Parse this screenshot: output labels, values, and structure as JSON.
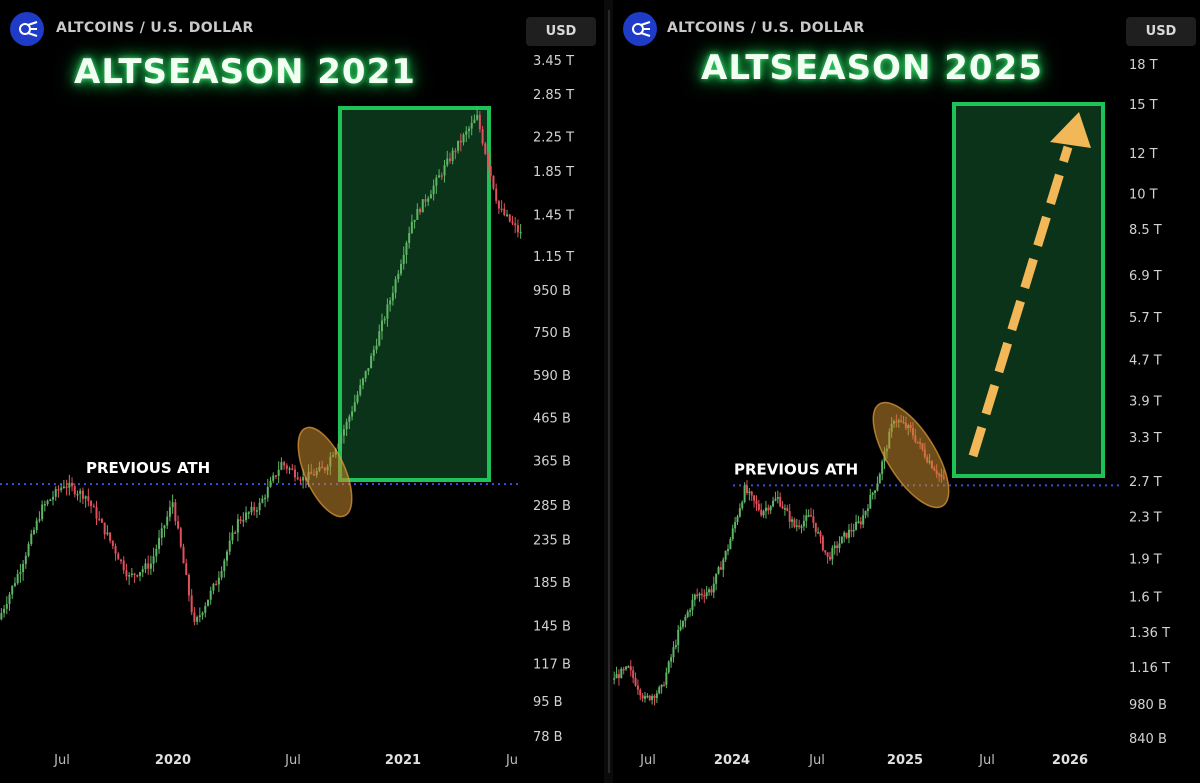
{
  "panels": [
    {
      "symbol": "ALTCOINS / U.S. DOLLAR",
      "currency_button": "USD",
      "title": "ALTSEASON 2021",
      "annotation": "PREVIOUS ATH",
      "colors": {
        "up": "#5fb566",
        "down": "#e0505d",
        "box": "#1f9e4e",
        "ath_line": "#3a4fd8",
        "highlight": "#c98a2e"
      }
    },
    {
      "symbol": "ALTCOINS / U.S. DOLLAR",
      "currency_button": "USD",
      "title": "ALTSEASON 2025",
      "annotation": "PREVIOUS ATH",
      "colors": {
        "up": "#5fb566",
        "down": "#e0505d",
        "box": "#1f9e4e",
        "ath_line": "#3a4fd8",
        "highlight": "#c98a2e",
        "arrow": "#f2b756"
      }
    }
  ],
  "chart_data": [
    {
      "type": "candlestick",
      "title": "ALTSEASON 2021",
      "y_scale": "log",
      "y_ticks": [
        "3.45 T",
        "2.85 T",
        "2.25 T",
        "1.85 T",
        "1.45 T",
        "1.15 T",
        "950 B",
        "750 B",
        "590 B",
        "465 B",
        "365 B",
        "285 B",
        "235 B",
        "185 B",
        "145 B",
        "117 B",
        "95 B",
        "78 B"
      ],
      "x_ticks": [
        {
          "label": "Jul",
          "bold": false
        },
        {
          "label": "2020",
          "bold": true
        },
        {
          "label": "Jul",
          "bold": false
        },
        {
          "label": "2021",
          "bold": true
        },
        {
          "label": "Ju",
          "bold": false
        }
      ],
      "previous_ath": 320,
      "series_close": [
        {
          "date": "2019-05",
          "value": 150
        },
        {
          "date": "2019-06",
          "value": 200
        },
        {
          "date": "2019-06",
          "value": 280
        },
        {
          "date": "2019-07",
          "value": 320
        },
        {
          "date": "2019-08",
          "value": 300
        },
        {
          "date": "2019-10",
          "value": 240
        },
        {
          "date": "2019-12",
          "value": 190
        },
        {
          "date": "2020-01",
          "value": 205
        },
        {
          "date": "2020-02",
          "value": 290
        },
        {
          "date": "2020-03",
          "value": 145
        },
        {
          "date": "2020-04",
          "value": 185
        },
        {
          "date": "2020-06",
          "value": 260
        },
        {
          "date": "2020-07",
          "value": 285
        },
        {
          "date": "2020-08",
          "value": 360
        },
        {
          "date": "2020-09",
          "value": 330
        },
        {
          "date": "2020-10",
          "value": 350
        },
        {
          "date": "2020-11",
          "value": 450
        },
        {
          "date": "2020-12",
          "value": 620
        },
        {
          "date": "2021-01",
          "value": 900
        },
        {
          "date": "2021-02",
          "value": 1400
        },
        {
          "date": "2021-03",
          "value": 1700
        },
        {
          "date": "2021-04",
          "value": 2100
        },
        {
          "date": "2021-05",
          "value": 2500
        },
        {
          "date": "2021-05",
          "value": 1500
        },
        {
          "date": "2021-06",
          "value": 1300
        }
      ]
    },
    {
      "type": "candlestick",
      "title": "ALTSEASON 2025",
      "y_scale": "log",
      "y_ticks": [
        "18 T",
        "15 T",
        "12 T",
        "10 T",
        "8.5 T",
        "6.9 T",
        "5.7 T",
        "4.7 T",
        "3.9 T",
        "3.3 T",
        "2.7 T",
        "2.3 T",
        "1.9 T",
        "1.6 T",
        "1.36 T",
        "1.16 T",
        "980 B",
        "840 B"
      ],
      "x_ticks": [
        {
          "label": "Jul",
          "bold": false
        },
        {
          "label": "2024",
          "bold": true
        },
        {
          "label": "Jul",
          "bold": false
        },
        {
          "label": "2025",
          "bold": true
        },
        {
          "label": "Jul",
          "bold": false
        },
        {
          "label": "2026",
          "bold": true
        }
      ],
      "previous_ath": 2.65,
      "series_close": [
        {
          "date": "2023-05",
          "value": 1.1
        },
        {
          "date": "2023-07",
          "value": 1.15
        },
        {
          "date": "2023-09",
          "value": 1.0
        },
        {
          "date": "2023-10",
          "value": 1.05
        },
        {
          "date": "2023-11",
          "value": 1.35
        },
        {
          "date": "2023-12",
          "value": 1.6
        },
        {
          "date": "2024-01",
          "value": 1.65
        },
        {
          "date": "2024-02",
          "value": 2.0
        },
        {
          "date": "2024-03",
          "value": 2.6
        },
        {
          "date": "2024-04",
          "value": 2.35
        },
        {
          "date": "2024-05",
          "value": 2.5
        },
        {
          "date": "2024-06",
          "value": 2.2
        },
        {
          "date": "2024-07",
          "value": 2.3
        },
        {
          "date": "2024-08",
          "value": 1.9
        },
        {
          "date": "2024-09",
          "value": 2.1
        },
        {
          "date": "2024-10",
          "value": 2.25
        },
        {
          "date": "2024-11",
          "value": 2.7
        },
        {
          "date": "2024-12",
          "value": 3.6
        },
        {
          "date": "2025-01",
          "value": 3.4
        },
        {
          "date": "2025-02",
          "value": 3.0
        },
        {
          "date": "2025-03",
          "value": 2.7
        }
      ],
      "projection_arrow": {
        "from": 3.0,
        "to": 15.5
      }
    }
  ]
}
